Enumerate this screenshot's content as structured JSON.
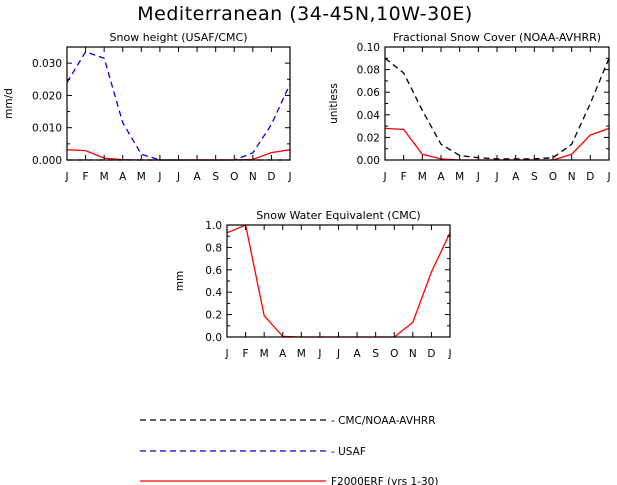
{
  "figure": {
    "title": "Mediterranean (34-45N,10W-30E)"
  },
  "months": [
    "J",
    "F",
    "M",
    "A",
    "M",
    "J",
    "J",
    "A",
    "S",
    "O",
    "N",
    "D",
    "J"
  ],
  "chart_data": [
    {
      "id": "snow-height",
      "type": "line",
      "title": "Snow height (USAF/CMC)",
      "xlabel": "",
      "ylabel": "mm/d",
      "ylim": [
        0,
        0.035
      ],
      "yticks": [
        0,
        0.01,
        0.02,
        0.03
      ],
      "ytick_labels": [
        "0.000",
        "0.010",
        "0.020",
        "0.030"
      ],
      "series": [
        {
          "name": "CMC/NOAA-AVHRR",
          "color": "#000000",
          "dash": "6,4",
          "values": [
            0,
            0,
            0,
            0,
            0,
            0,
            0,
            0,
            0,
            0,
            0,
            0,
            0
          ]
        },
        {
          "name": "USAF",
          "color": "#0000e0",
          "dash": "6,4",
          "values": [
            0.024,
            0.0335,
            0.0315,
            0.0115,
            0.0018,
            0,
            0,
            0,
            0,
            0,
            0.0022,
            0.011,
            0.0235
          ]
        },
        {
          "name": "F2000ERF (yrs 1-30)",
          "color": "#ff0000",
          "dash": "",
          "values": [
            0.0032,
            0.0029,
            0.0006,
            0.0001,
            0,
            0,
            0,
            0,
            0,
            0,
            0.0002,
            0.0023,
            0.0032
          ]
        }
      ]
    },
    {
      "id": "snow-cover",
      "type": "line",
      "title": "Fractional Snow Cover (NOAA-AVHRR)",
      "xlabel": "",
      "ylabel": "unitless",
      "ylim": [
        0,
        0.1
      ],
      "yticks": [
        0,
        0.02,
        0.04,
        0.06,
        0.08,
        0.1
      ],
      "ytick_labels": [
        "0.00",
        "0.02",
        "0.04",
        "0.06",
        "0.08",
        "0.10"
      ],
      "series": [
        {
          "name": "CMC/NOAA-AVHRR",
          "color": "#000000",
          "dash": "6,4",
          "values": [
            0.09,
            0.077,
            0.044,
            0.014,
            0.004,
            0.002,
            0.001,
            0.001,
            0.001,
            0.002,
            0.014,
            0.05,
            0.09
          ]
        },
        {
          "name": "F2000ERF (yrs 1-30)",
          "color": "#ff0000",
          "dash": "",
          "values": [
            0.028,
            0.027,
            0.005,
            0.001,
            0,
            0,
            0,
            0,
            0,
            0,
            0.005,
            0.022,
            0.028
          ]
        }
      ]
    },
    {
      "id": "swe",
      "type": "line",
      "title": "Snow Water Equivalent (CMC)",
      "xlabel": "",
      "ylabel": "mm",
      "ylim": [
        0,
        1.0
      ],
      "yticks": [
        0,
        0.2,
        0.4,
        0.6,
        0.8,
        1.0
      ],
      "ytick_labels": [
        "0.0",
        "0.2",
        "0.4",
        "0.6",
        "0.8",
        "1.0"
      ],
      "series": [
        {
          "name": "F2000ERF (yrs 1-30)",
          "color": "#ff0000",
          "dash": "",
          "values": [
            0.93,
            1.0,
            0.19,
            0.005,
            0,
            0,
            0,
            0,
            0,
            0,
            0.13,
            0.58,
            0.93
          ]
        }
      ]
    }
  ],
  "legend": {
    "placement": "bottom-center",
    "items": [
      {
        "label": "CMC/NOAA-AVHRR",
        "color": "#000000",
        "dash": "6,4"
      },
      {
        "label": "USAF",
        "color": "#0000e0",
        "dash": "6,4"
      },
      {
        "label": "F2000ERF (yrs 1-30)",
        "color": "#ff0000",
        "dash": ""
      }
    ]
  }
}
